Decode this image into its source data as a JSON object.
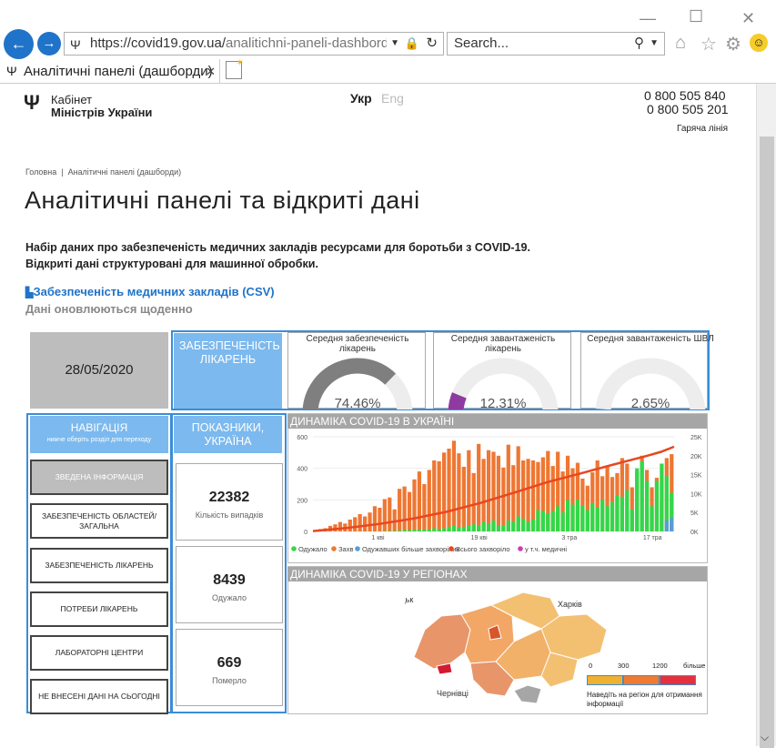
{
  "browser": {
    "url_main": "https://covid19.gov.ua/",
    "url_path": "analitichni-paneli-dashbord",
    "search_placeholder": "Search...",
    "tab_title": "Аналітичні панелі (дашборди)",
    "win_min": "—",
    "win_max": "☐",
    "win_close": "✕"
  },
  "header": {
    "logo_line1": "Кабінет",
    "logo_line2": "Міністрів України",
    "lang_active": "Укр",
    "lang_inactive": "Eng",
    "phone1": "0 800 505 840",
    "phone2": "0 800 505 201",
    "hotline": "Гаряча лінія"
  },
  "breadcrumb": {
    "home": "Головна",
    "sep": "|",
    "current": "Аналітичні панелі (дашборди)"
  },
  "page_title": "Аналітичні панелі та відкриті дані",
  "intro_line1": "Набір даних про забезпеченість медичних закладів ресурсами для боротьби з COVID-19.",
  "intro_line2": "Відкриті дані структуровані для машинної обробки.",
  "csv_link": "Забезпеченість медичних закладів (CSV)",
  "update_note": "Дані оновлюються щоденно",
  "dashboard": {
    "date": "28/05/2020",
    "section_title": "ЗАБЕЗПЕЧЕНІСТЬ ЛІКАРЕНЬ",
    "gauges": [
      {
        "title": "Середня забезпеченість лікарень",
        "value": "74.46%",
        "fraction": 0.7446,
        "color": "#7f7f7f"
      },
      {
        "title": "Середня завантаженість лікарень",
        "value": "12.31%",
        "fraction": 0.1231,
        "color": "#8e3aa0"
      },
      {
        "title": "Середня завантаженість ШВЛ",
        "value": "2.65%",
        "fraction": 0.0265,
        "color": "#2f8fe0"
      }
    ],
    "nav_title": "НАВІГАЦІЯ",
    "nav_subtitle": "нижче оберіть розділ для переходу",
    "nav_items": [
      "ЗВЕДЕНА ІНФОРМАЦІЯ",
      "ЗАБЕЗПЕЧЕНІСТЬ ОБЛАСТЕЙ/ ЗАГАЛЬНА",
      "ЗАБЕЗПЕЧЕНІСТЬ ЛІКАРЕНЬ",
      "ПОТРЕБИ ЛІКАРЕНЬ",
      "ЛАБОРАТОРНІ ЦЕНТРИ",
      "НЕ ВНЕСЕНІ ДАНІ НА СЬОГОДНІ"
    ],
    "kpi_title": "ПОКАЗНИКИ, УКРАЇНА",
    "kpis": [
      {
        "value": "22382",
        "label": "Кількість випадків"
      },
      {
        "value": "8439",
        "label": "Одужало"
      },
      {
        "value": "669",
        "label": "Померло"
      }
    ],
    "map_title": "ДИНАМІКА COVID-19 У РЕГІОНАХ",
    "map_labels": {
      "lutsk": "Луцьк",
      "kharkiv": "Харків",
      "chernivtsi": "Чернівці"
    },
    "map_legend": {
      "ticks": [
        "0",
        "300",
        "1200",
        "більше"
      ],
      "hint": "Наведіть на регіон для отримання інформації",
      "colors": [
        "#f0b030",
        "#f07a30",
        "#e6303c"
      ]
    }
  },
  "chart_data": {
    "type": "bar",
    "title": "ДИНАМІКА COVID-19 В УКРАЇНІ",
    "left_ticks": [
      "600",
      "400",
      "200",
      "0"
    ],
    "right_ticks": [
      "25K",
      "20K",
      "15K",
      "10K",
      "5K",
      "0K"
    ],
    "ylim_left": [
      0,
      600
    ],
    "ylim_right": [
      0,
      25000
    ],
    "x_ticks": [
      "1 кві",
      "19 кві",
      "3 тра",
      "17 тра"
    ],
    "legend": [
      {
        "name": "Одужало",
        "color": "#32d84a"
      },
      {
        "name": "Захв",
        "color": "#ee7733"
      },
      {
        "name": "Одужавших більше захворілих",
        "color": "#5b9bd5"
      },
      {
        "name": "Всього захворіло",
        "color": "#e8471f"
      },
      {
        "name": "у т.ч. медичні",
        "color": "#d03ab0"
      }
    ],
    "series": [
      {
        "name": "Захв",
        "values": [
          8,
          15,
          20,
          35,
          45,
          60,
          50,
          75,
          90,
          110,
          95,
          120,
          160,
          150,
          205,
          215,
          140,
          270,
          285,
          250,
          330,
          380,
          300,
          390,
          450,
          445,
          500,
          525,
          575,
          495,
          410,
          515,
          370,
          555,
          460,
          515,
          505,
          480,
          405,
          550,
          420,
          540,
          450,
          460,
          450,
          440,
          470,
          510,
          415,
          505,
          380,
          480,
          400,
          435,
          335,
          290,
          375,
          450,
          350,
          415,
          345,
          370,
          465,
          430,
          280,
          380,
          480,
          390,
          280,
          340,
          190,
          465,
          490
        ]
      },
      {
        "name": "Одужало",
        "values": [
          0,
          0,
          0,
          0,
          0,
          0,
          0,
          0,
          0,
          0,
          0,
          0,
          0,
          0,
          2,
          4,
          3,
          6,
          8,
          8,
          10,
          10,
          12,
          12,
          20,
          15,
          20,
          30,
          35,
          25,
          30,
          40,
          45,
          40,
          60,
          50,
          70,
          40,
          35,
          70,
          60,
          95,
          80,
          60,
          75,
          135,
          130,
          110,
          130,
          160,
          120,
          200,
          170,
          200,
          165,
          135,
          180,
          150,
          200,
          160,
          185,
          225,
          220,
          260,
          140,
          400,
          445,
          320,
          160,
          320,
          430,
          350,
          245
        ]
      },
      {
        "name": "Одужавших більше захворілих",
        "values": [
          0,
          0,
          0,
          0,
          0,
          0,
          0,
          0,
          0,
          0,
          0,
          0,
          0,
          0,
          0,
          0,
          0,
          0,
          0,
          0,
          0,
          0,
          0,
          0,
          0,
          0,
          0,
          0,
          0,
          0,
          0,
          0,
          0,
          0,
          0,
          0,
          0,
          0,
          0,
          0,
          0,
          0,
          0,
          0,
          0,
          0,
          0,
          0,
          0,
          0,
          0,
          0,
          0,
          0,
          0,
          0,
          0,
          0,
          0,
          0,
          0,
          0,
          0,
          0,
          0,
          0,
          0,
          0,
          0,
          0,
          0,
          70,
          85
        ]
      },
      {
        "name": "у т.ч. медичні",
        "values": [
          0,
          0,
          0,
          0,
          0,
          0,
          0,
          0,
          0,
          0,
          0,
          0,
          0,
          0,
          0,
          0,
          0,
          0,
          0,
          0,
          0,
          0,
          0,
          0,
          0,
          0,
          0,
          0,
          0,
          0,
          0,
          0,
          0,
          0,
          0,
          0,
          0,
          0,
          0,
          0,
          0,
          0,
          0,
          0,
          0,
          0,
          0,
          0,
          0,
          0,
          0,
          0,
          0,
          0,
          0,
          0,
          0,
          0,
          0,
          0,
          0,
          0,
          0,
          0,
          0,
          0,
          0,
          0,
          0,
          0,
          0,
          0,
          0
        ]
      },
      {
        "name": "Всього захворіло",
        "line": [
          [
            0,
            100
          ],
          [
            10,
            900
          ],
          [
            20,
            2000
          ],
          [
            30,
            3400
          ],
          [
            40,
            5200
          ],
          [
            50,
            7500
          ],
          [
            60,
            10200
          ],
          [
            70,
            13000
          ],
          [
            80,
            15300
          ],
          [
            90,
            17700
          ],
          [
            100,
            20000
          ],
          [
            104,
            21000
          ],
          [
            108,
            22382
          ]
        ]
      }
    ]
  }
}
